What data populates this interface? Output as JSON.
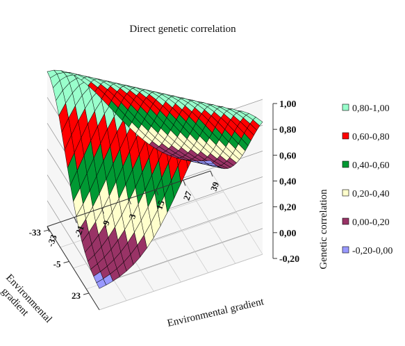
{
  "chart_data": {
    "type": "surface3d",
    "title": "Direct genetic correlation",
    "zlabel": "Genetic correlation",
    "xlabel": "Environmental gradient",
    "ylabel": "Environmental gradient",
    "z_ticks": [
      "1,00",
      "0,80",
      "0,60",
      "0,40",
      "0,20",
      "0,00",
      "-0,20"
    ],
    "x_ticks": [
      "-33",
      "-21",
      "-9",
      "3",
      "15",
      "27",
      "39"
    ],
    "y_ticks": [
      "23",
      "-5",
      "-33"
    ],
    "zlim": [
      -0.2,
      1.0
    ],
    "x_range": [
      -33,
      39
    ],
    "y_range": [
      -33,
      23
    ],
    "surface": {
      "description": "genetic correlation between environments; 1.0 along diagonal x=y, decreasing with distance",
      "diagonal_value": 1.0,
      "corner_x39_ym33": -0.15,
      "corner_xm33_y23": -0.05
    },
    "legend": [
      {
        "label": "0,80-1,00",
        "color": "#99ffcc"
      },
      {
        "label": "0,60-0,80",
        "color": "#ff0000"
      },
      {
        "label": "0,40-0,60",
        "color": "#009933"
      },
      {
        "label": "0,20-0,40",
        "color": "#ffffcc"
      },
      {
        "label": "0,00-0,20",
        "color": "#993366"
      },
      {
        "label": "-0,20-0,00",
        "color": "#9999ff"
      }
    ]
  }
}
